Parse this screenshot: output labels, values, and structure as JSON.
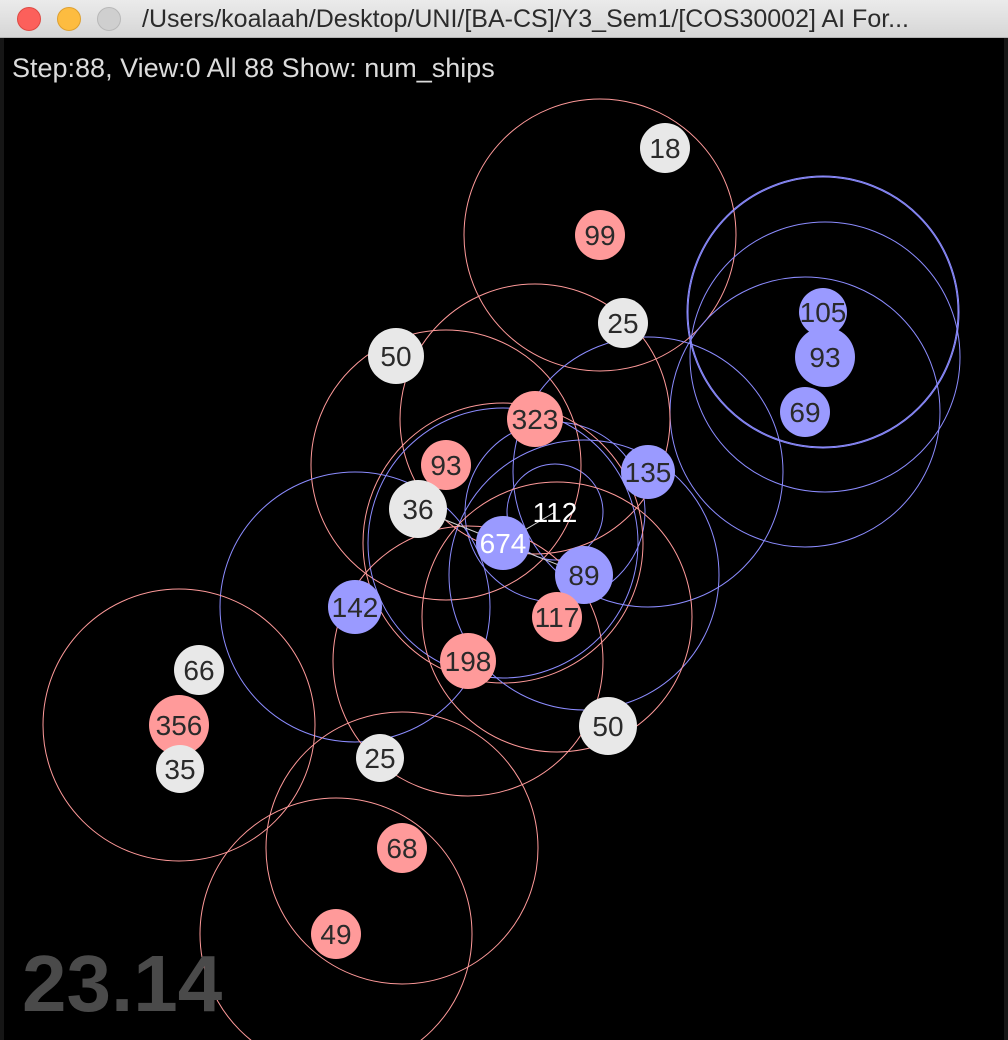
{
  "window": {
    "title": "/Users/koalaah/Desktop/UNI/[BA-CS]/Y3_Sem1/[COS30002] AI For..."
  },
  "hud": {
    "status": "Step:88, View:0 All 88 Show: num_ships",
    "timer": "23.14"
  },
  "colors": {
    "background": "#000000",
    "neutral_planet": "#e8e8e8",
    "red_planet": "#ff9a9a",
    "blue_planet": "#9a9aff",
    "red_radius": "#ff9a9a",
    "blue_radius": "#8c8cff",
    "label_dark": "#2a2a2a",
    "label_light": "#ffffff",
    "timer": "#4a4a4a"
  },
  "planets": [
    {
      "owner": "neutral",
      "ships": "18"
    },
    {
      "owner": "red",
      "ships": "99"
    },
    {
      "owner": "neutral",
      "ships": "25"
    },
    {
      "owner": "blue",
      "ships": "105"
    },
    {
      "owner": "blue",
      "ships": "93"
    },
    {
      "owner": "blue",
      "ships": "69"
    },
    {
      "owner": "neutral",
      "ships": "50"
    },
    {
      "owner": "red",
      "ships": "323"
    },
    {
      "owner": "red",
      "ships": "93"
    },
    {
      "owner": "blue",
      "ships": "135"
    },
    {
      "owner": "neutral",
      "ships": "36"
    },
    {
      "owner": "fleet",
      "ships": "112"
    },
    {
      "owner": "blue",
      "ships": "674"
    },
    {
      "owner": "blue",
      "ships": "89"
    },
    {
      "owner": "blue",
      "ships": "142"
    },
    {
      "owner": "red",
      "ships": "117"
    },
    {
      "owner": "red",
      "ships": "198"
    },
    {
      "owner": "neutral",
      "ships": "66"
    },
    {
      "owner": "red",
      "ships": "356"
    },
    {
      "owner": "neutral",
      "ships": "35"
    },
    {
      "owner": "neutral",
      "ships": "25"
    },
    {
      "owner": "neutral",
      "ships": "50"
    },
    {
      "owner": "red",
      "ships": "68"
    },
    {
      "owner": "red",
      "ships": "49"
    }
  ]
}
